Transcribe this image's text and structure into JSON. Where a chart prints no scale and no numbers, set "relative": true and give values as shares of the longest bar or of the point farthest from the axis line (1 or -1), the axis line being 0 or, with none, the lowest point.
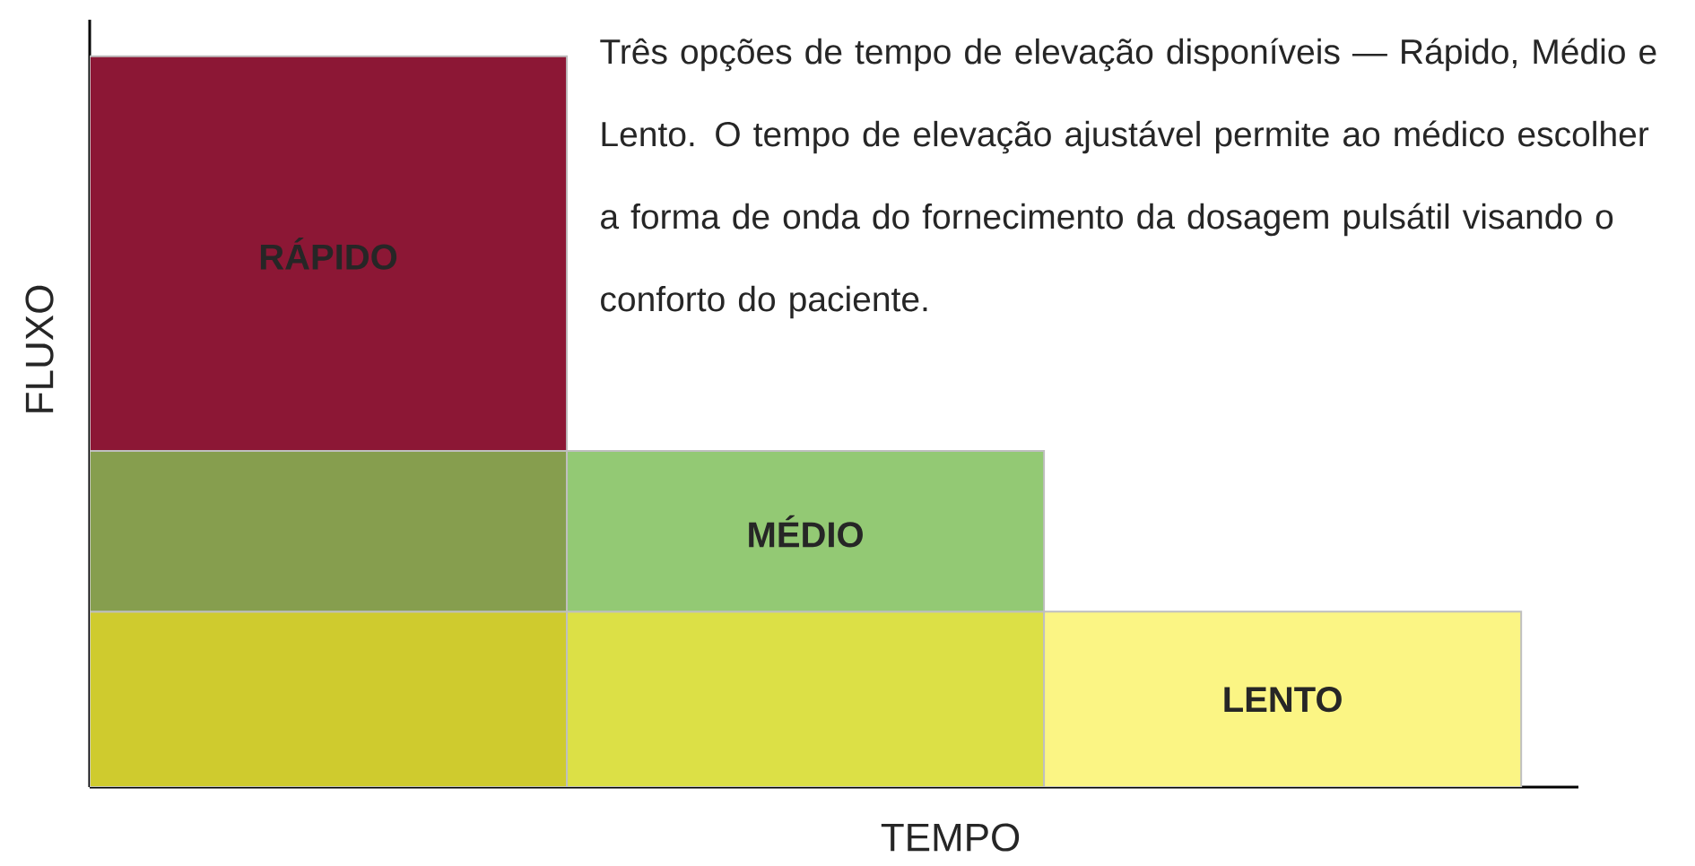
{
  "chart_data": {
    "type": "bar",
    "stacked": true,
    "relative": true,
    "xlabel": "TEMPO",
    "ylabel": "FLUXO",
    "categories": [
      null,
      null,
      null
    ],
    "series": [
      {
        "name": "LENTO",
        "colors": [
          "#cfcb2e",
          "#dce046",
          "#fbf584"
        ],
        "values": [
          0.24,
          0.24,
          0.24
        ]
      },
      {
        "name": "MÉDIO",
        "colors": [
          "#869e4e",
          "#93c974",
          null
        ],
        "values": [
          0.22,
          0.22,
          null
        ]
      },
      {
        "name": "RÁPIDO",
        "colors": [
          "#8c1735",
          null,
          null
        ],
        "values": [
          0.54,
          null,
          null
        ]
      }
    ],
    "annotations": [
      "Três opções de tempo de elevação disponíveis — Rápido, Médio e Lento. O tempo de elevação ajustável permite ao médico escolher a forma de onda do fornecimento da dosagem pulsátil visando o conforto do paciente."
    ]
  }
}
